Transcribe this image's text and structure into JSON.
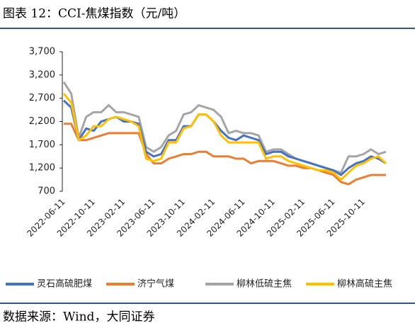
{
  "chart_data": {
    "type": "line",
    "title": "图表 12：CCI-焦煤指数（元/吨）",
    "source": "数据来源：Wind，大同证券",
    "categories": [
      "2022-06-11",
      null,
      null,
      null,
      "2022-10-11",
      null,
      null,
      null,
      "2023-02-11",
      null,
      null,
      null,
      "2023-06-11",
      null,
      null,
      null,
      "2023-10-11",
      null,
      null,
      null,
      "2024-02-11",
      null,
      null,
      null,
      "2024-06-11",
      null,
      null,
      null,
      "2024-10-11",
      null,
      null,
      null,
      "2025-02-11",
      null,
      null,
      null,
      "2025-06-11",
      null,
      null,
      null,
      "2025-10-11",
      null,
      null,
      null
    ],
    "ylim": [
      700,
      3700
    ],
    "yticks": [
      {
        "value": 700,
        "label": "700"
      },
      {
        "value": 1200,
        "label": "1,200"
      },
      {
        "value": 1700,
        "label": "1,700"
      },
      {
        "value": 2200,
        "label": "2,200"
      },
      {
        "value": 2700,
        "label": "2,700"
      },
      {
        "value": 3200,
        "label": "3,200"
      },
      {
        "value": 3700,
        "label": "3,700"
      }
    ],
    "series": [
      {
        "name": "灵石高硫肥煤",
        "color": "#4472c4",
        "values": [
          2650,
          2500,
          1800,
          2050,
          2000,
          2200,
          2250,
          2300,
          2200,
          2200,
          2150,
          1550,
          1450,
          1500,
          1800,
          1800,
          2100,
          2100,
          2350,
          2350,
          2200,
          2000,
          1850,
          1800,
          1900,
          1850,
          1800,
          1500,
          1550,
          1550,
          1450,
          1400,
          1350,
          1300,
          1250,
          1200,
          1150,
          1050,
          1200,
          1300,
          1350,
          1450,
          1400,
          1300
        ]
      },
      {
        "name": "济宁气煤",
        "color": "#ed7d31",
        "values": [
          2150,
          2150,
          1800,
          1800,
          1850,
          1900,
          1950,
          1950,
          1950,
          1950,
          1950,
          1500,
          1300,
          1300,
          1400,
          1450,
          1500,
          1500,
          1550,
          1550,
          1450,
          1450,
          1450,
          1400,
          1400,
          1300,
          1350,
          1350,
          1350,
          1300,
          1250,
          1250,
          1200,
          1200,
          1150,
          1100,
          1050,
          900,
          850,
          950,
          1000,
          1050,
          1050,
          1050
        ]
      },
      {
        "name": "柳林低硫主焦",
        "color": "#a5a5a5",
        "values": [
          3050,
          2800,
          1850,
          2300,
          2400,
          2400,
          2550,
          2400,
          2400,
          2350,
          2300,
          1650,
          1550,
          1650,
          1900,
          2000,
          2350,
          2400,
          2550,
          2500,
          2450,
          2300,
          1950,
          2000,
          1950,
          1950,
          1900,
          1550,
          1600,
          1600,
          1500,
          1400,
          1350,
          1300,
          1250,
          1200,
          1150,
          1100,
          1450,
          1450,
          1500,
          1600,
          1500,
          1550
        ]
      },
      {
        "name": "柳林高硫主焦",
        "color": "#ffc000",
        "values": [
          2800,
          2600,
          1800,
          1900,
          2100,
          2100,
          2250,
          2300,
          2250,
          2200,
          2100,
          1400,
          1350,
          1400,
          1750,
          1750,
          2050,
          2100,
          2350,
          2350,
          2200,
          1900,
          1750,
          1750,
          1750,
          1750,
          1750,
          1400,
          1450,
          1450,
          1350,
          1300,
          1250,
          1200,
          1150,
          1150,
          1100,
          950,
          1100,
          1250,
          1300,
          1400,
          1450,
          1300
        ]
      }
    ]
  }
}
